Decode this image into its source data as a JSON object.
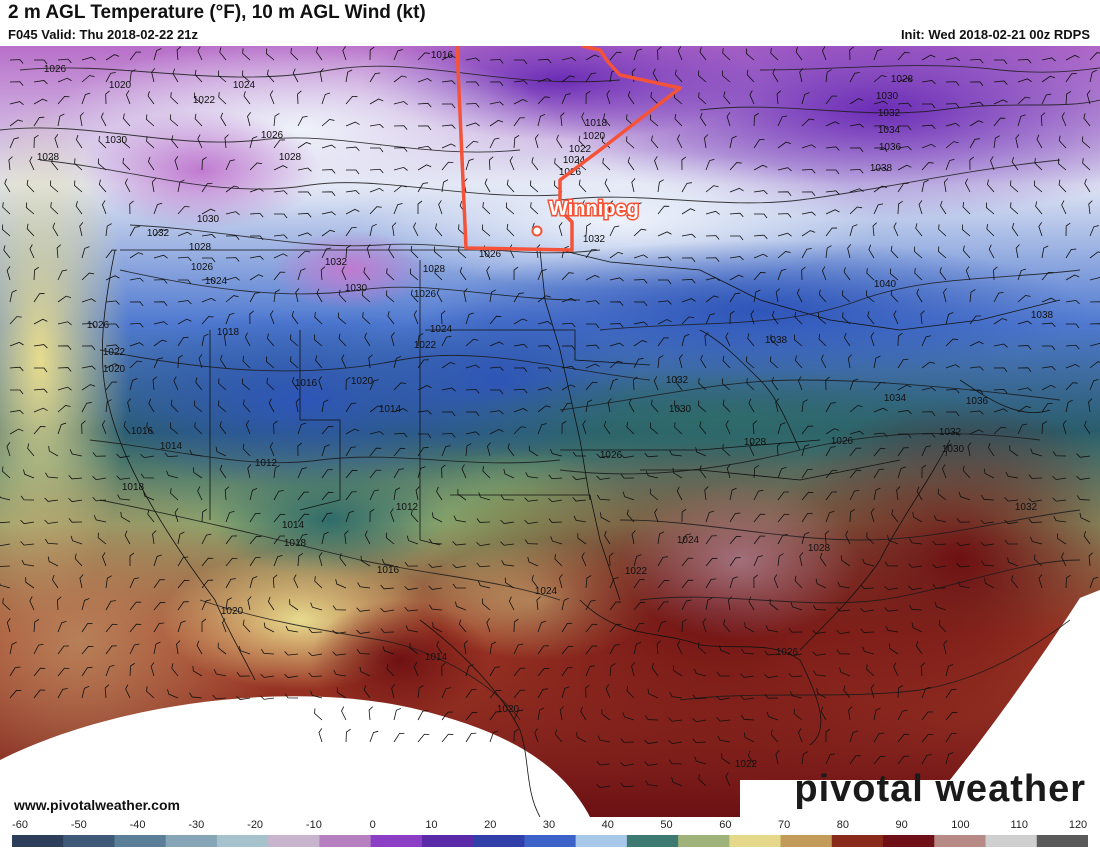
{
  "header": {
    "title": "2 m AGL Temperature (°F), 10 m AGL Wind (kt)",
    "valid": "F045 Valid: Thu 2018-02-22 21z",
    "init": "Init: Wed 2018-02-21 00z RDPS"
  },
  "annotation": {
    "city_label": "Winnipeg",
    "outline_color": "#f4533a"
  },
  "isobars": [
    "1026",
    "1020",
    "1022",
    "1024",
    "1030",
    "1026",
    "1028",
    "1028",
    "1030",
    "1032",
    "1028",
    "1026",
    "1024",
    "1032",
    "1030",
    "1028",
    "1026",
    "1024",
    "1022",
    "1018",
    "1026",
    "1022",
    "1020",
    "1016",
    "1020",
    "1014",
    "1016",
    "1014",
    "1012",
    "1018",
    "1014",
    "1018",
    "1012",
    "1016",
    "1020",
    "1014",
    "1020",
    "1016",
    "1018",
    "1020",
    "1022",
    "1024",
    "1026",
    "1032",
    "1026",
    "1028",
    "1030",
    "1032",
    "1034",
    "1036",
    "1038",
    "1040",
    "1038",
    "1038",
    "1032",
    "1030",
    "1034",
    "1036",
    "1032",
    "1030",
    "1026",
    "1028",
    "1026",
    "1024",
    "1024",
    "1022",
    "1028",
    "1032",
    "1026",
    "1022"
  ],
  "footer": {
    "credit": "www.pivotalweather.com",
    "brand": "pivotal weather"
  },
  "colorbar": {
    "ticks": [
      "-60",
      "-50",
      "-40",
      "-30",
      "-20",
      "-10",
      "0",
      "10",
      "20",
      "30",
      "40",
      "50",
      "60",
      "70",
      "80",
      "90",
      "100",
      "110",
      "120"
    ],
    "colors": [
      "#2c3e59",
      "#3e5a78",
      "#5b7f99",
      "#86a6b8",
      "#a6c2cc",
      "#c9b4cd",
      "#b67fc0",
      "#8c3ec4",
      "#5a2aa8",
      "#3140a8",
      "#3d62c8",
      "#a8c8ea",
      "#3c7a72",
      "#9eb27a",
      "#e6d88a",
      "#c29a5a",
      "#8a2a1a",
      "#6e1016",
      "#b88a86",
      "#cfcfcf",
      "#5a5a5a"
    ]
  }
}
